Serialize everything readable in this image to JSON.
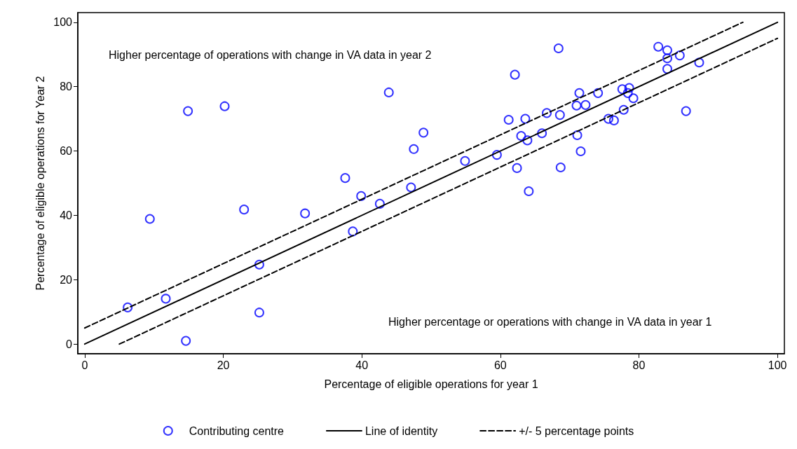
{
  "chart_data": {
    "type": "scatter",
    "xlabel": "Percentage of eligible operations for year 1",
    "ylabel": "Percentage of eligible operations for Year 2",
    "annotations": [
      "Higher percentage of operations with change in VA data in year 2",
      "Higher percentage or operations with change in VA data in year 1"
    ],
    "xlim": [
      -1,
      101
    ],
    "ylim": [
      -3,
      103
    ],
    "xticks": [
      0,
      20,
      40,
      60,
      80,
      100
    ],
    "yticks": [
      0,
      20,
      40,
      60,
      80,
      100
    ],
    "grid": false,
    "legend": "bottom",
    "series": [
      {
        "name": "Contributing centre",
        "type": "scatter",
        "color": "#0000ff",
        "marker": "circle",
        "x": [
          6.2,
          11.7,
          9.4,
          14.9,
          14.6,
          20.2,
          25.2,
          25.2,
          23.0,
          31.8,
          37.6,
          38.7,
          39.9,
          42.6,
          43.9,
          47.1,
          47.5,
          48.9,
          54.9,
          59.5,
          61.2,
          68.4,
          62.1,
          62.4,
          63.0,
          63.6,
          63.9,
          64.1,
          66.0,
          66.7,
          68.6,
          68.7,
          71.0,
          71.1,
          71.4,
          71.6,
          72.3,
          74.1,
          75.6,
          76.4,
          77.6,
          77.8,
          78.6,
          78.4,
          79.2,
          82.8,
          84.1,
          84.1,
          84.1,
          85.9,
          86.8,
          88.7
        ],
        "values": [
          11.4,
          14.1,
          38.9,
          72.4,
          1.0,
          73.9,
          9.8,
          24.7,
          41.8,
          40.6,
          51.6,
          35.0,
          46.0,
          43.6,
          78.2,
          48.7,
          60.6,
          65.7,
          56.9,
          58.8,
          69.7,
          91.9,
          83.7,
          54.7,
          64.7,
          70.0,
          63.3,
          47.5,
          65.5,
          71.8,
          71.2,
          54.9,
          74.1,
          64.9,
          78.0,
          59.9,
          74.3,
          78.0,
          70.0,
          69.5,
          79.2,
          72.8,
          79.6,
          78.0,
          76.4,
          92.4,
          91.3,
          88.8,
          85.5,
          89.7,
          72.4,
          87.5
        ]
      },
      {
        "name": "Line of identity",
        "type": "line",
        "color": "#000000",
        "line_style": "solid",
        "marker": "none",
        "x": [
          0,
          100
        ],
        "values": [
          0,
          100
        ]
      },
      {
        "name": "+/- 5 percentage points",
        "type": "line",
        "color": "#000000",
        "line_style": "dashed",
        "marker": "none",
        "x": [
          0,
          95,
          50,
          5,
          100
        ],
        "values": [
          5,
          100,
          null,
          0,
          95
        ]
      }
    ]
  }
}
